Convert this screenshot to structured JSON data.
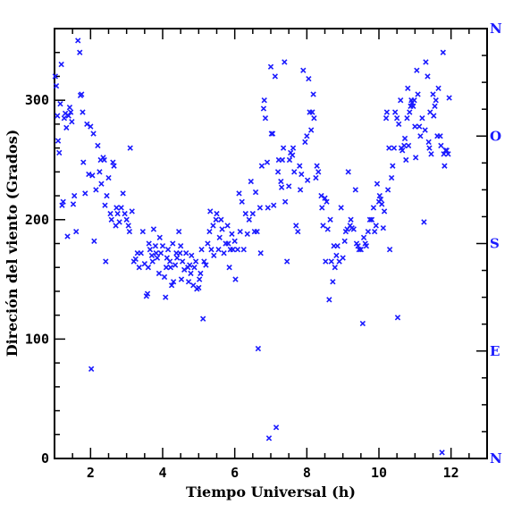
{
  "chart_data": {
    "type": "scatter",
    "title": "",
    "xlabel": "Tiempo Universal (h)",
    "ylabel": "Direción del viento (Grados)",
    "xlim": [
      1,
      13
    ],
    "ylim": [
      0,
      360
    ],
    "x_ticks": [
      2,
      4,
      6,
      8,
      10,
      12
    ],
    "y_ticks": [
      0,
      100,
      200,
      300
    ],
    "right_axis_labels": [
      {
        "value": 0,
        "label": "N"
      },
      {
        "value": 90,
        "label": "E"
      },
      {
        "value": 180,
        "label": "S"
      },
      {
        "value": 270,
        "label": "O"
      },
      {
        "value": 360,
        "label": "N"
      }
    ],
    "marker": "x",
    "colors": {
      "marker": "#1a1aff",
      "axis": "#000000",
      "compass": "#1a1aff"
    },
    "series": [
      {
        "points": [
          [
            1.02,
            320
          ],
          [
            1.05,
            312
          ],
          [
            1.08,
            287
          ],
          [
            1.1,
            266
          ],
          [
            1.13,
            256
          ],
          [
            1.16,
            297
          ],
          [
            1.19,
            330
          ],
          [
            1.21,
            212
          ],
          [
            1.24,
            215
          ],
          [
            1.27,
            285
          ],
          [
            1.3,
            289
          ],
          [
            1.33,
            277
          ],
          [
            1.36,
            186
          ],
          [
            1.39,
            287
          ],
          [
            1.42,
            294
          ],
          [
            1.45,
            290
          ],
          [
            1.48,
            282
          ],
          [
            1.52,
            213
          ],
          [
            1.55,
            220
          ],
          [
            1.6,
            190
          ],
          [
            1.65,
            350
          ],
          [
            1.7,
            340
          ],
          [
            1.72,
            304
          ],
          [
            1.75,
            305
          ],
          [
            1.78,
            290
          ],
          [
            1.8,
            248
          ],
          [
            1.85,
            222
          ],
          [
            1.9,
            280
          ],
          [
            1.95,
            238
          ],
          [
            2.0,
            278
          ],
          [
            2.02,
            75
          ],
          [
            2.05,
            237
          ],
          [
            2.08,
            272
          ],
          [
            2.1,
            182
          ],
          [
            2.15,
            225
          ],
          [
            2.2,
            262
          ],
          [
            2.25,
            240
          ],
          [
            2.28,
            250
          ],
          [
            2.3,
            230
          ],
          [
            2.35,
            252
          ],
          [
            2.38,
            250
          ],
          [
            2.4,
            212
          ],
          [
            2.42,
            165
          ],
          [
            2.45,
            220
          ],
          [
            2.5,
            235
          ],
          [
            2.55,
            205
          ],
          [
            2.58,
            200
          ],
          [
            2.62,
            248
          ],
          [
            2.65,
            245
          ],
          [
            2.7,
            195
          ],
          [
            2.72,
            210
          ],
          [
            2.75,
            205
          ],
          [
            2.8,
            198
          ],
          [
            2.85,
            210
          ],
          [
            2.9,
            222
          ],
          [
            2.95,
            205
          ],
          [
            3.0,
            200
          ],
          [
            3.05,
            195
          ],
          [
            3.08,
            190
          ],
          [
            3.1,
            260
          ],
          [
            3.15,
            207
          ],
          [
            3.2,
            165
          ],
          [
            3.25,
            167
          ],
          [
            3.3,
            172
          ],
          [
            3.35,
            160
          ],
          [
            3.4,
            172
          ],
          [
            3.45,
            190
          ],
          [
            3.5,
            163
          ],
          [
            3.55,
            136
          ],
          [
            3.58,
            138
          ],
          [
            3.6,
            160
          ],
          [
            3.62,
            180
          ],
          [
            3.65,
            175
          ],
          [
            3.7,
            170
          ],
          [
            3.72,
            165
          ],
          [
            3.75,
            192
          ],
          [
            3.8,
            178
          ],
          [
            3.82,
            172
          ],
          [
            3.85,
            168
          ],
          [
            3.9,
            155
          ],
          [
            3.92,
            185
          ],
          [
            3.95,
            172
          ],
          [
            4.0,
            178
          ],
          [
            4.05,
            152
          ],
          [
            4.08,
            135
          ],
          [
            4.1,
            160
          ],
          [
            4.12,
            168
          ],
          [
            4.15,
            175
          ],
          [
            4.2,
            165
          ],
          [
            4.22,
            160
          ],
          [
            4.25,
            145
          ],
          [
            4.28,
            180
          ],
          [
            4.3,
            148
          ],
          [
            4.35,
            162
          ],
          [
            4.38,
            172
          ],
          [
            4.4,
            168
          ],
          [
            4.45,
            190
          ],
          [
            4.48,
            172
          ],
          [
            4.5,
            178
          ],
          [
            4.52,
            150
          ],
          [
            4.55,
            165
          ],
          [
            4.6,
            158
          ],
          [
            4.65,
            172
          ],
          [
            4.7,
            160
          ],
          [
            4.72,
            148
          ],
          [
            4.75,
            162
          ],
          [
            4.78,
            155
          ],
          [
            4.8,
            170
          ],
          [
            4.85,
            145
          ],
          [
            4.88,
            160
          ],
          [
            4.92,
            165
          ],
          [
            4.95,
            142
          ],
          [
            5.0,
            143
          ],
          [
            5.02,
            150
          ],
          [
            5.05,
            155
          ],
          [
            5.08,
            175
          ],
          [
            5.12,
            117
          ],
          [
            5.15,
            165
          ],
          [
            5.2,
            162
          ],
          [
            5.25,
            180
          ],
          [
            5.3,
            190
          ],
          [
            5.32,
            207
          ],
          [
            5.35,
            175
          ],
          [
            5.4,
            195
          ],
          [
            5.42,
            170
          ],
          [
            5.48,
            200
          ],
          [
            5.5,
            205
          ],
          [
            5.55,
            175
          ],
          [
            5.58,
            185
          ],
          [
            5.62,
            200
          ],
          [
            5.65,
            192
          ],
          [
            5.7,
            172
          ],
          [
            5.75,
            180
          ],
          [
            5.8,
            195
          ],
          [
            5.82,
            180
          ],
          [
            5.85,
            160
          ],
          [
            5.88,
            175
          ],
          [
            5.92,
            188
          ],
          [
            5.95,
            175
          ],
          [
            6.0,
            182
          ],
          [
            6.02,
            150
          ],
          [
            6.08,
            175
          ],
          [
            6.12,
            222
          ],
          [
            6.15,
            190
          ],
          [
            6.2,
            215
          ],
          [
            6.25,
            175
          ],
          [
            6.3,
            205
          ],
          [
            6.35,
            188
          ],
          [
            6.4,
            200
          ],
          [
            6.45,
            232
          ],
          [
            6.5,
            205
          ],
          [
            6.55,
            190
          ],
          [
            6.58,
            223
          ],
          [
            6.62,
            190
          ],
          [
            6.65,
            92
          ],
          [
            6.7,
            210
          ],
          [
            6.72,
            172
          ],
          [
            6.75,
            245
          ],
          [
            6.8,
            293
          ],
          [
            6.82,
            300
          ],
          [
            6.85,
            285
          ],
          [
            6.9,
            248
          ],
          [
            6.92,
            210
          ],
          [
            6.95,
            17
          ],
          [
            7.0,
            328
          ],
          [
            7.02,
            272
          ],
          [
            7.05,
            272
          ],
          [
            7.08,
            212
          ],
          [
            7.12,
            320
          ],
          [
            7.15,
            26
          ],
          [
            7.2,
            240
          ],
          [
            7.22,
            250
          ],
          [
            7.28,
            232
          ],
          [
            7.3,
            227
          ],
          [
            7.32,
            250
          ],
          [
            7.35,
            260
          ],
          [
            7.38,
            332
          ],
          [
            7.4,
            215
          ],
          [
            7.45,
            165
          ],
          [
            7.5,
            228
          ],
          [
            7.52,
            250
          ],
          [
            7.55,
            256
          ],
          [
            7.6,
            254
          ],
          [
            7.62,
            260
          ],
          [
            7.65,
            240
          ],
          [
            7.7,
            195
          ],
          [
            7.75,
            190
          ],
          [
            7.8,
            245
          ],
          [
            7.82,
            225
          ],
          [
            7.85,
            238
          ],
          [
            7.9,
            325
          ],
          [
            7.95,
            265
          ],
          [
            8.0,
            270
          ],
          [
            8.02,
            233
          ],
          [
            8.05,
            318
          ],
          [
            8.08,
            290
          ],
          [
            8.12,
            275
          ],
          [
            8.15,
            290
          ],
          [
            8.18,
            305
          ],
          [
            8.2,
            285
          ],
          [
            8.25,
            235
          ],
          [
            8.28,
            245
          ],
          [
            8.32,
            240
          ],
          [
            8.4,
            220
          ],
          [
            8.42,
            210
          ],
          [
            8.45,
            195
          ],
          [
            8.5,
            218
          ],
          [
            8.52,
            165
          ],
          [
            8.55,
            215
          ],
          [
            8.58,
            192
          ],
          [
            8.62,
            133
          ],
          [
            8.65,
            200
          ],
          [
            8.68,
            165
          ],
          [
            8.72,
            148
          ],
          [
            8.75,
            178
          ],
          [
            8.78,
            160
          ],
          [
            8.82,
            170
          ],
          [
            8.85,
            178
          ],
          [
            8.9,
            165
          ],
          [
            8.95,
            210
          ],
          [
            9.0,
            168
          ],
          [
            9.05,
            182
          ],
          [
            9.08,
            190
          ],
          [
            9.12,
            192
          ],
          [
            9.15,
            240
          ],
          [
            9.2,
            195
          ],
          [
            9.22,
            200
          ],
          [
            9.25,
            193
          ],
          [
            9.3,
            192
          ],
          [
            9.35,
            225
          ],
          [
            9.38,
            180
          ],
          [
            9.42,
            178
          ],
          [
            9.45,
            175
          ],
          [
            9.5,
            175
          ],
          [
            9.55,
            113
          ],
          [
            9.58,
            185
          ],
          [
            9.62,
            180
          ],
          [
            9.65,
            178
          ],
          [
            9.7,
            190
          ],
          [
            9.75,
            200
          ],
          [
            9.8,
            200
          ],
          [
            9.85,
            210
          ],
          [
            9.88,
            190
          ],
          [
            9.92,
            195
          ],
          [
            9.95,
            230
          ],
          [
            10.0,
            215
          ],
          [
            10.02,
            220
          ],
          [
            10.05,
            217
          ],
          [
            10.08,
            213
          ],
          [
            10.12,
            193
          ],
          [
            10.15,
            207
          ],
          [
            10.2,
            285
          ],
          [
            10.22,
            290
          ],
          [
            10.25,
            225
          ],
          [
            10.28,
            260
          ],
          [
            10.3,
            175
          ],
          [
            10.35,
            235
          ],
          [
            10.38,
            245
          ],
          [
            10.42,
            260
          ],
          [
            10.45,
            290
          ],
          [
            10.5,
            285
          ],
          [
            10.52,
            118
          ],
          [
            10.55,
            280
          ],
          [
            10.6,
            300
          ],
          [
            10.62,
            260
          ],
          [
            10.65,
            258
          ],
          [
            10.7,
            262
          ],
          [
            10.72,
            268
          ],
          [
            10.75,
            250
          ],
          [
            10.78,
            285
          ],
          [
            10.8,
            310
          ],
          [
            10.82,
            262
          ],
          [
            10.85,
            290
          ],
          [
            10.88,
            295
          ],
          [
            10.9,
            300
          ],
          [
            10.92,
            298
          ],
          [
            10.95,
            295
          ],
          [
            10.98,
            300
          ],
          [
            11.0,
            278
          ],
          [
            11.02,
            252
          ],
          [
            11.05,
            325
          ],
          [
            11.08,
            305
          ],
          [
            11.12,
            278
          ],
          [
            11.15,
            270
          ],
          [
            11.2,
            285
          ],
          [
            11.25,
            198
          ],
          [
            11.28,
            275
          ],
          [
            11.3,
            332
          ],
          [
            11.35,
            320
          ],
          [
            11.38,
            265
          ],
          [
            11.4,
            260
          ],
          [
            11.42,
            290
          ],
          [
            11.45,
            255
          ],
          [
            11.5,
            305
          ],
          [
            11.52,
            287
          ],
          [
            11.55,
            295
          ],
          [
            11.58,
            300
          ],
          [
            11.62,
            270
          ],
          [
            11.65,
            310
          ],
          [
            11.7,
            270
          ],
          [
            11.72,
            262
          ],
          [
            11.75,
            5
          ],
          [
            11.78,
            340
          ],
          [
            11.8,
            255
          ],
          [
            11.82,
            245
          ],
          [
            11.85,
            258
          ],
          [
            11.88,
            258
          ],
          [
            11.92,
            255
          ],
          [
            11.95,
            302
          ]
        ]
      }
    ]
  }
}
